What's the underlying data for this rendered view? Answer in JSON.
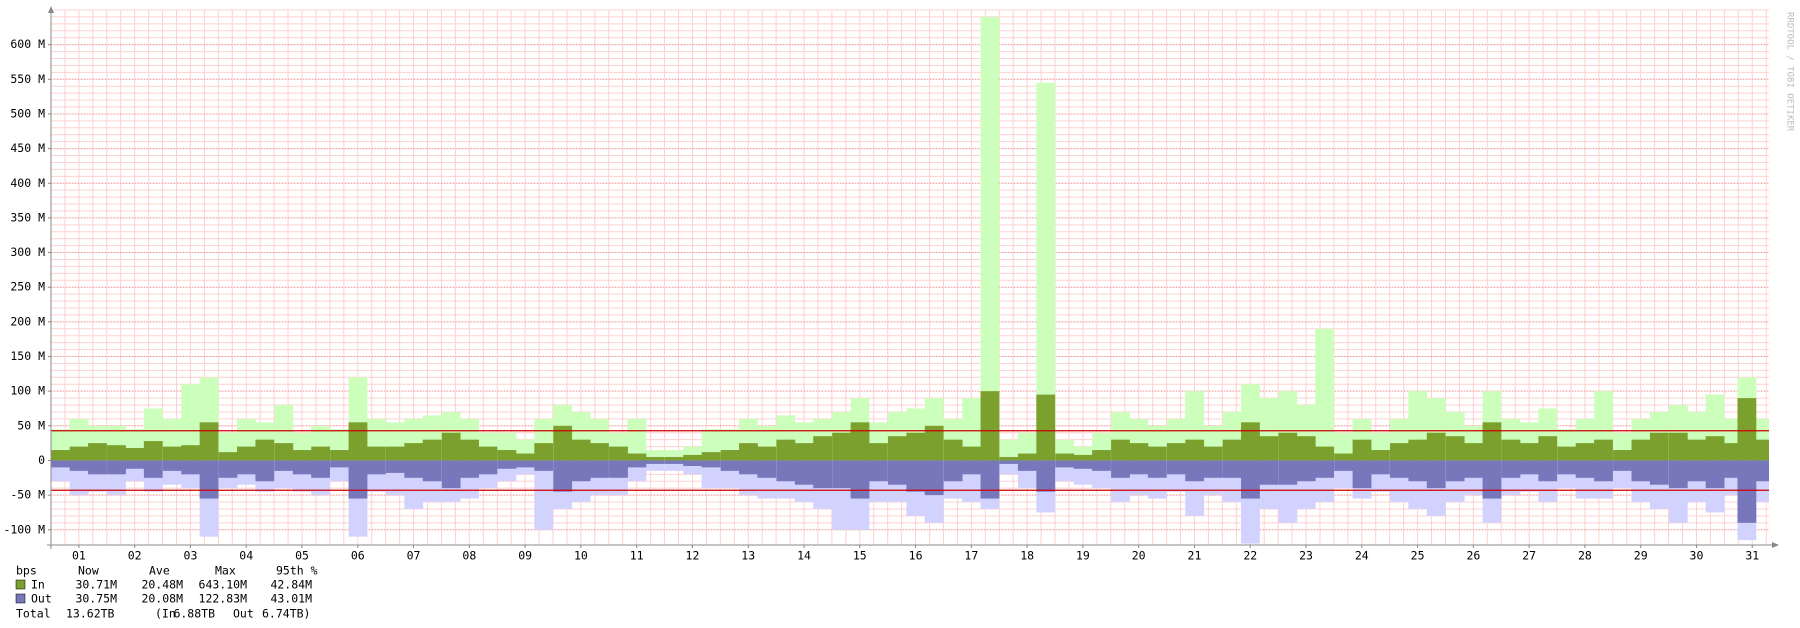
{
  "chart_data": {
    "type": "traffic-area",
    "watermark": "RRDTOOL / TOBI OETIKER",
    "xlim": [
      0,
      30.8
    ],
    "xticks": [
      {
        "value": 0.5,
        "label": "01"
      },
      {
        "value": 1.5,
        "label": "02"
      },
      {
        "value": 2.5,
        "label": "03"
      },
      {
        "value": 3.5,
        "label": "04"
      },
      {
        "value": 4.5,
        "label": "05"
      },
      {
        "value": 5.5,
        "label": "06"
      },
      {
        "value": 6.5,
        "label": "07"
      },
      {
        "value": 7.5,
        "label": "08"
      },
      {
        "value": 8.5,
        "label": "09"
      },
      {
        "value": 9.5,
        "label": "10"
      },
      {
        "value": 10.5,
        "label": "11"
      },
      {
        "value": 11.5,
        "label": "12"
      },
      {
        "value": 12.5,
        "label": "13"
      },
      {
        "value": 13.5,
        "label": "14"
      },
      {
        "value": 14.5,
        "label": "15"
      },
      {
        "value": 15.5,
        "label": "16"
      },
      {
        "value": 16.5,
        "label": "17"
      },
      {
        "value": 17.5,
        "label": "18"
      },
      {
        "value": 18.5,
        "label": "19"
      },
      {
        "value": 19.5,
        "label": "20"
      },
      {
        "value": 20.5,
        "label": "21"
      },
      {
        "value": 21.5,
        "label": "22"
      },
      {
        "value": 22.5,
        "label": "23"
      },
      {
        "value": 23.5,
        "label": "24"
      },
      {
        "value": 24.5,
        "label": "25"
      },
      {
        "value": 25.5,
        "label": "26"
      },
      {
        "value": 26.5,
        "label": "27"
      },
      {
        "value": 27.5,
        "label": "28"
      },
      {
        "value": 28.5,
        "label": "29"
      },
      {
        "value": 29.5,
        "label": "30"
      },
      {
        "value": 30.5,
        "label": "31"
      }
    ],
    "ylim": [
      -122,
      650
    ],
    "yticks": [
      {
        "value": -100,
        "label": "-100 M"
      },
      {
        "value": -50,
        "label": "-50 M"
      },
      0,
      {
        "value": 50,
        "label": "50 M"
      },
      {
        "value": 100,
        "label": "100 M"
      },
      {
        "value": 150,
        "label": "150 M"
      },
      {
        "value": 200,
        "label": "200 M"
      },
      {
        "value": 250,
        "label": "250 M"
      },
      {
        "value": 300,
        "label": "300 M"
      },
      {
        "value": 350,
        "label": "350 M"
      },
      {
        "value": 400,
        "label": "400 M"
      },
      {
        "value": 450,
        "label": "450 M"
      },
      {
        "value": 500,
        "label": "500 M"
      },
      {
        "value": 550,
        "label": "550 M"
      },
      {
        "value": 600,
        "label": "600 M"
      }
    ],
    "grid": true,
    "x": [
      0.17,
      0.5,
      0.83,
      1.17,
      1.5,
      1.83,
      2.17,
      2.5,
      2.83,
      3.17,
      3.5,
      3.83,
      4.17,
      4.5,
      4.83,
      5.17,
      5.5,
      5.83,
      6.17,
      6.5,
      6.83,
      7.17,
      7.5,
      7.83,
      8.17,
      8.5,
      8.83,
      9.17,
      9.5,
      9.83,
      10.17,
      10.5,
      10.83,
      11.17,
      11.5,
      11.83,
      12.17,
      12.5,
      12.83,
      13.17,
      13.5,
      13.83,
      14.17,
      14.5,
      14.83,
      15.17,
      15.5,
      15.83,
      16.17,
      16.5,
      16.83,
      17.17,
      17.5,
      17.83,
      18.17,
      18.5,
      18.83,
      19.17,
      19.5,
      19.83,
      20.17,
      20.5,
      20.83,
      21.17,
      21.5,
      21.83,
      22.17,
      22.5,
      22.83,
      23.17,
      23.5,
      23.83,
      24.17,
      24.5,
      24.83,
      25.17,
      25.5,
      25.83,
      26.17,
      26.5,
      26.83,
      27.17,
      27.5,
      27.83,
      28.17,
      28.5,
      28.83,
      29.17,
      29.5,
      29.83,
      30.1,
      30.4,
      30.7
    ],
    "legend_header": [
      "bps",
      "Now",
      "Ave",
      "Max",
      "95th %"
    ],
    "series": [
      {
        "name": "In",
        "direction": "up",
        "color": "#7ca02e",
        "max_color": "#ccffbb",
        "percentile_color": "#cc0000",
        "values": [
          15,
          20,
          25,
          22,
          18,
          28,
          20,
          22,
          55,
          12,
          20,
          30,
          25,
          15,
          20,
          15,
          55,
          20,
          20,
          25,
          30,
          40,
          30,
          20,
          15,
          10,
          25,
          50,
          30,
          25,
          20,
          10,
          5,
          5,
          8,
          12,
          15,
          25,
          20,
          30,
          25,
          35,
          40,
          55,
          25,
          35,
          40,
          50,
          30,
          20,
          100,
          5,
          10,
          95,
          10,
          8,
          15,
          30,
          25,
          20,
          25,
          30,
          20,
          30,
          55,
          35,
          40,
          35,
          20,
          10,
          30,
          15,
          25,
          30,
          40,
          35,
          25,
          55,
          30,
          25,
          35,
          20,
          25,
          30,
          15,
          30,
          40,
          40,
          30,
          35,
          25,
          90,
          30
        ],
        "max_values": [
          45,
          60,
          50,
          50,
          45,
          75,
          60,
          110,
          120,
          40,
          60,
          55,
          80,
          40,
          50,
          45,
          120,
          60,
          55,
          60,
          65,
          70,
          60,
          40,
          40,
          30,
          60,
          80,
          70,
          60,
          40,
          60,
          15,
          15,
          20,
          45,
          45,
          60,
          50,
          65,
          55,
          60,
          70,
          90,
          55,
          70,
          75,
          90,
          60,
          90,
          640,
          30,
          40,
          545,
          30,
          20,
          40,
          70,
          60,
          50,
          60,
          100,
          50,
          70,
          110,
          90,
          100,
          80,
          190,
          40,
          60,
          40,
          60,
          100,
          90,
          70,
          50,
          100,
          60,
          55,
          75,
          45,
          60,
          100,
          40,
          60,
          70,
          80,
          70,
          95,
          60,
          120,
          60
        ],
        "stats": [
          {
            "value": 30.71,
            "label": "30.71M"
          },
          {
            "value": 20.48,
            "label": "20.48M"
          },
          {
            "value": 643.1,
            "label": "643.10M"
          },
          {
            "value": 42.84,
            "label": "42.84M"
          }
        ]
      },
      {
        "name": "Out",
        "direction": "down",
        "color": "#7777bb",
        "max_color": "#d2d2ff",
        "percentile_color": "#cc0000",
        "values": [
          10,
          15,
          20,
          20,
          12,
          25,
          15,
          20,
          55,
          25,
          20,
          30,
          15,
          20,
          25,
          10,
          55,
          20,
          18,
          25,
          30,
          40,
          25,
          20,
          12,
          10,
          15,
          45,
          30,
          25,
          25,
          10,
          5,
          5,
          8,
          10,
          15,
          20,
          25,
          30,
          35,
          40,
          40,
          55,
          30,
          35,
          45,
          50,
          30,
          20,
          55,
          5,
          15,
          45,
          10,
          12,
          15,
          25,
          20,
          25,
          20,
          30,
          25,
          25,
          55,
          35,
          35,
          30,
          25,
          15,
          40,
          20,
          25,
          30,
          40,
          30,
          25,
          55,
          25,
          20,
          30,
          20,
          25,
          30,
          15,
          30,
          35,
          40,
          30,
          40,
          25,
          90,
          30
        ],
        "max_values": [
          30,
          50,
          45,
          50,
          30,
          45,
          35,
          40,
          110,
          40,
          35,
          45,
          40,
          45,
          50,
          30,
          110,
          45,
          50,
          70,
          60,
          60,
          55,
          40,
          30,
          20,
          100,
          70,
          60,
          50,
          50,
          30,
          15,
          15,
          20,
          40,
          40,
          50,
          55,
          55,
          60,
          70,
          100,
          100,
          60,
          60,
          80,
          90,
          55,
          60,
          70,
          20,
          40,
          75,
          30,
          35,
          40,
          60,
          50,
          55,
          45,
          80,
          50,
          60,
          120,
          70,
          90,
          70,
          60,
          40,
          55,
          45,
          60,
          70,
          80,
          60,
          50,
          90,
          50,
          45,
          60,
          40,
          55,
          55,
          40,
          60,
          70,
          90,
          60,
          75,
          50,
          115,
          60
        ],
        "stats": [
          {
            "value": 30.75,
            "label": "30.75M"
          },
          {
            "value": 20.08,
            "label": "20.08M"
          },
          {
            "value": 122.83,
            "label": "122.83M"
          },
          {
            "value": 43.01,
            "label": "43.01M"
          }
        ]
      }
    ],
    "total": {
      "label": "Total",
      "value": "13.62TB",
      "in_label": "(In",
      "in": "6.88TB",
      "out_label": "Out",
      "out": "6.74TB)"
    }
  }
}
